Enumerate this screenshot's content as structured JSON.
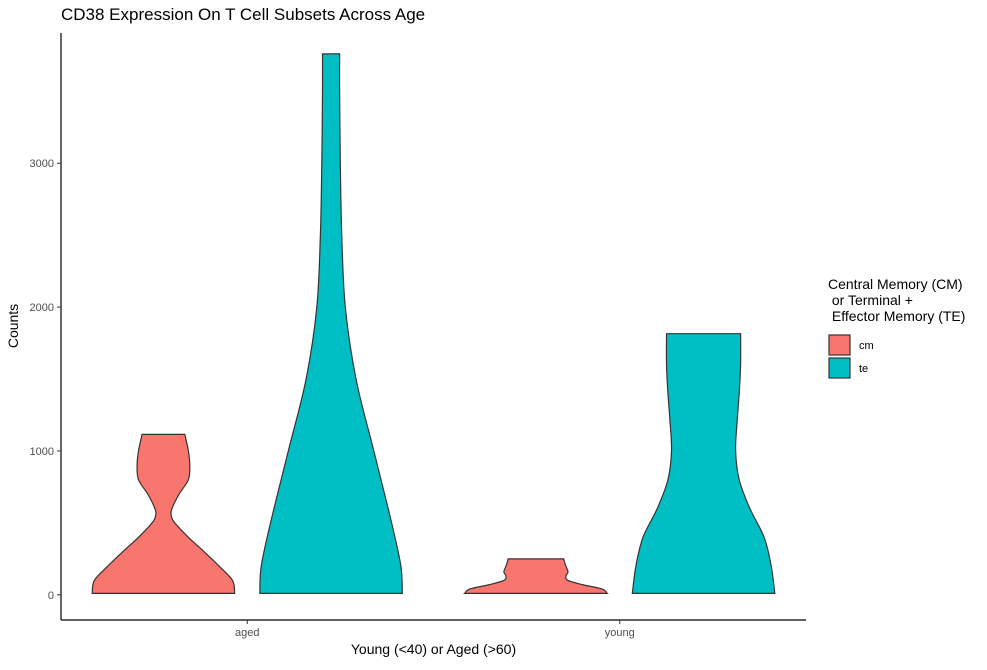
{
  "chart_data": {
    "type": "violin",
    "title": "CD38 Expression On T Cell Subsets Across Age",
    "xlabel": "Young (<40) or Aged (>60)",
    "ylabel": "Counts",
    "categories": [
      "aged",
      "young"
    ],
    "ylim": [
      -175,
      3905
    ],
    "yticks": [
      0,
      1000,
      2000,
      3000
    ],
    "grid": false,
    "legend": {
      "title_lines": [
        "Central Memory (CM)",
        " or Terminal +",
        " Effector Memory (TE)"
      ],
      "placement": "right"
    },
    "series": [
      {
        "name": "cm",
        "color": "#F8766D",
        "violins": [
          {
            "category": "aged",
            "min": 10,
            "max": 1115,
            "profile": [
              [
                10,
                1.0
              ],
              [
                100,
                0.97
              ],
              [
                200,
                0.78
              ],
              [
                300,
                0.57
              ],
              [
                400,
                0.35
              ],
              [
                500,
                0.16
              ],
              [
                550,
                0.11
              ],
              [
                600,
                0.12
              ],
              [
                700,
                0.22
              ],
              [
                800,
                0.35
              ],
              [
                900,
                0.37
              ],
              [
                1000,
                0.35
              ],
              [
                1115,
                0.3
              ]
            ]
          },
          {
            "category": "young",
            "min": 10,
            "max": 250,
            "profile": [
              [
                10,
                1.0
              ],
              [
                40,
                0.93
              ],
              [
                70,
                0.66
              ],
              [
                100,
                0.45
              ],
              [
                130,
                0.42
              ],
              [
                160,
                0.45
              ],
              [
                200,
                0.42
              ],
              [
                230,
                0.4
              ],
              [
                250,
                0.39
              ]
            ]
          }
        ]
      },
      {
        "name": "te",
        "color": "#00BFC4",
        "violins": [
          {
            "category": "aged",
            "min": 10,
            "max": 3760,
            "profile": [
              [
                10,
                1.0
              ],
              [
                200,
                0.98
              ],
              [
                500,
                0.85
              ],
              [
                1000,
                0.6
              ],
              [
                1500,
                0.35
              ],
              [
                2000,
                0.2
              ],
              [
                2500,
                0.15
              ],
              [
                3000,
                0.13
              ],
              [
                3500,
                0.12
              ],
              [
                3760,
                0.12
              ]
            ]
          },
          {
            "category": "young",
            "min": 10,
            "max": 1815,
            "profile": [
              [
                10,
                1.0
              ],
              [
                200,
                0.95
              ],
              [
                400,
                0.85
              ],
              [
                600,
                0.65
              ],
              [
                800,
                0.5
              ],
              [
                1000,
                0.45
              ],
              [
                1200,
                0.47
              ],
              [
                1400,
                0.5
              ],
              [
                1600,
                0.52
              ],
              [
                1815,
                0.52
              ]
            ]
          }
        ]
      }
    ]
  }
}
